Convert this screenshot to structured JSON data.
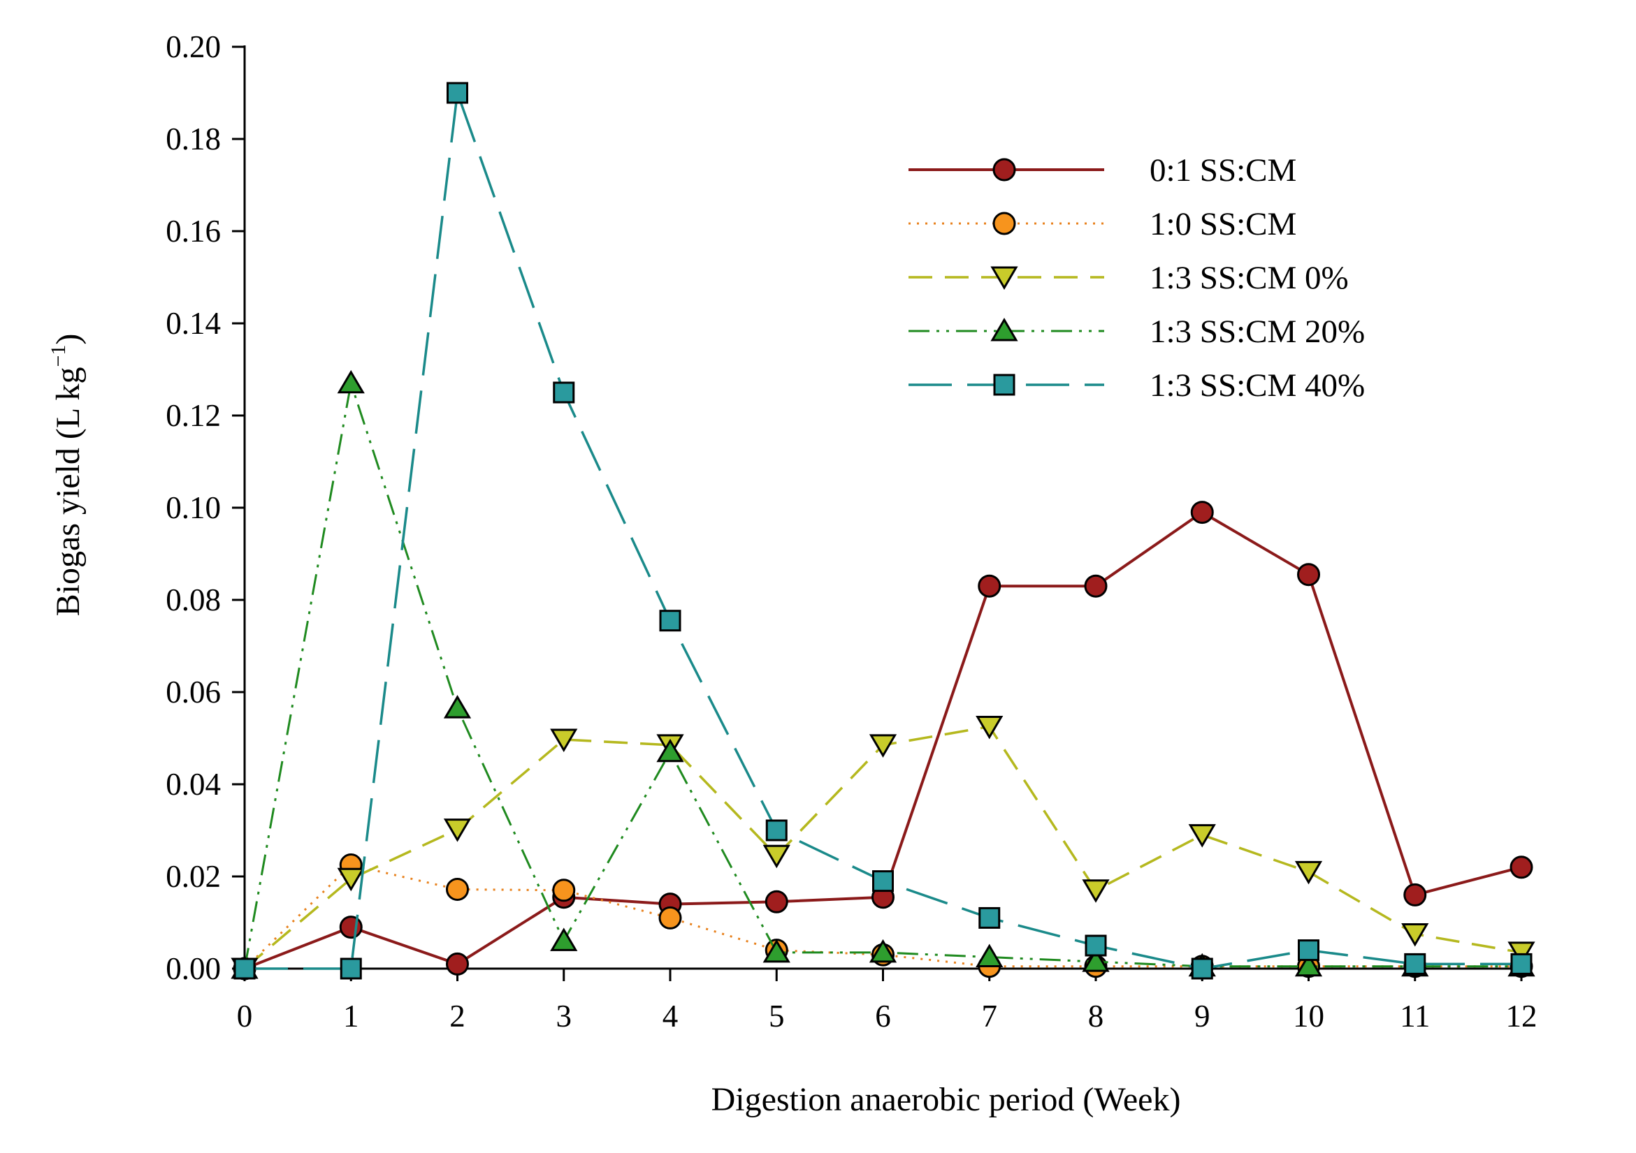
{
  "chart_data": {
    "type": "line",
    "xlabel": "Digestion anaerobic period (Week)",
    "ylabel": {
      "main": "Biogas yield (L kg",
      "superscript": "−1",
      "close": ")"
    },
    "xlim": [
      0,
      12
    ],
    "ylim": [
      0,
      0.2
    ],
    "x_ticks": [
      "0",
      "1",
      "2",
      "3",
      "4",
      "5",
      "6",
      "7",
      "8",
      "9",
      "10",
      "11",
      "12"
    ],
    "y_ticks": [
      "0.00",
      "0.02",
      "0.04",
      "0.06",
      "0.08",
      "0.10",
      "0.12",
      "0.14",
      "0.16",
      "0.18",
      "0.20"
    ],
    "grid": false,
    "legend_position": "top-right",
    "x": [
      0,
      1,
      2,
      3,
      4,
      5,
      6,
      7,
      8,
      9,
      10,
      11,
      12
    ],
    "series": [
      {
        "name": "0:1 SS:CM",
        "values": [
          0.0,
          0.009,
          0.001,
          0.0155,
          0.014,
          0.0145,
          0.0155,
          0.083,
          0.083,
          0.099,
          0.0855,
          0.016,
          0.022
        ],
        "color": "#8b1a1a",
        "fill": "#a01e1e",
        "marker": "circle",
        "line_style": "solid"
      },
      {
        "name": "1:0 SS:CM",
        "values": [
          0.0,
          0.0225,
          0.0172,
          0.017,
          0.011,
          0.004,
          0.003,
          0.0005,
          0.0005,
          0.0005,
          0.0005,
          0.0005,
          0.0005
        ],
        "color": "#e8821e",
        "fill": "#f7941d",
        "marker": "circle",
        "line_style": "dotted"
      },
      {
        "name": "1:3 SS:CM 0%",
        "values": [
          0.0,
          0.0195,
          0.0302,
          0.0497,
          0.0485,
          0.0245,
          0.0485,
          0.0525,
          0.017,
          0.029,
          0.021,
          0.0075,
          0.0035
        ],
        "color": "#b5b81e",
        "fill": "#c9cc2a",
        "marker": "triangle-down",
        "line_style": "dashed"
      },
      {
        "name": "1:3 SS:CM 20%",
        "values": [
          0.0,
          0.127,
          0.0565,
          0.006,
          0.047,
          0.0035,
          0.0035,
          0.0025,
          0.0015,
          0.0005,
          0.0005,
          0.0005,
          0.0005
        ],
        "color": "#1f8a1f",
        "fill": "#2e9e2e",
        "marker": "triangle-up",
        "line_style": "dash-dot-dot"
      },
      {
        "name": "1:3 SS:CM 40%",
        "values": [
          0.0,
          0.0,
          0.19,
          0.125,
          0.0755,
          0.03,
          0.019,
          0.011,
          0.005,
          0.0,
          0.004,
          0.001,
          0.001
        ],
        "color": "#1a8a8a",
        "fill": "#2a9a9e",
        "marker": "square",
        "line_style": "long-dash"
      }
    ]
  }
}
